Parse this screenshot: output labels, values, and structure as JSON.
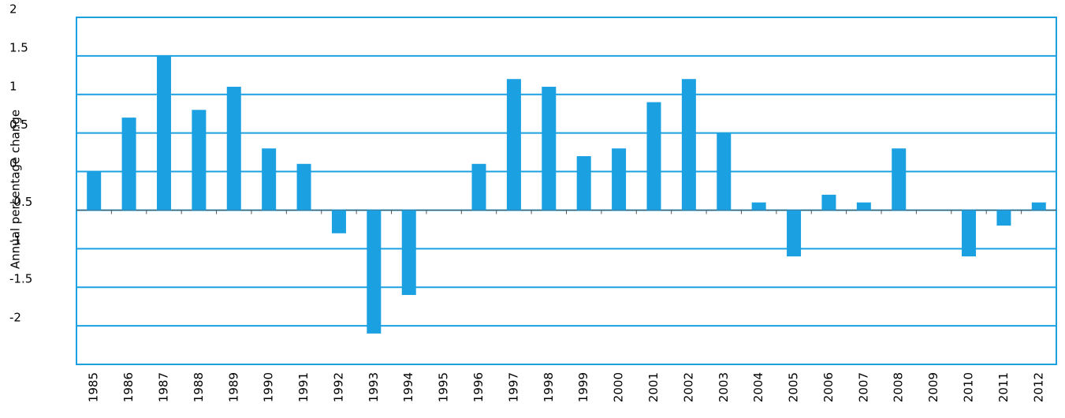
{
  "chart_data": {
    "type": "bar",
    "y_label": "Annual percentage change",
    "categories": [
      "1985",
      "1986",
      "1987",
      "1988",
      "1989",
      "1990",
      "1991",
      "1992",
      "1993",
      "1994",
      "1995",
      "1996",
      "1997",
      "1998",
      "1999",
      "2000",
      "2001",
      "2002",
      "2003",
      "2004",
      "2005",
      "2006",
      "2007",
      "2008",
      "2009",
      "2010",
      "2011",
      "2012"
    ],
    "values": [
      0,
      0.7,
      1.5,
      0.8,
      1.1,
      0.3,
      0.1,
      -0.8,
      -2.1,
      -1.6,
      -0.5,
      0.1,
      1.2,
      1.1,
      0.2,
      0.3,
      0.9,
      1.2,
      0.5,
      -0.4,
      -1.1,
      -0.3,
      -0.4,
      0.3,
      -0.5,
      -1.1,
      -0.7,
      -0.4
    ],
    "color": "#1ba1e2",
    "ylim": [
      -2.5,
      2
    ],
    "yticks": [
      -2,
      -1.5,
      -1,
      -0.5,
      0,
      0.5,
      1,
      1.5,
      2
    ],
    "x_axis_crossing": -0.5,
    "grid": true
  }
}
